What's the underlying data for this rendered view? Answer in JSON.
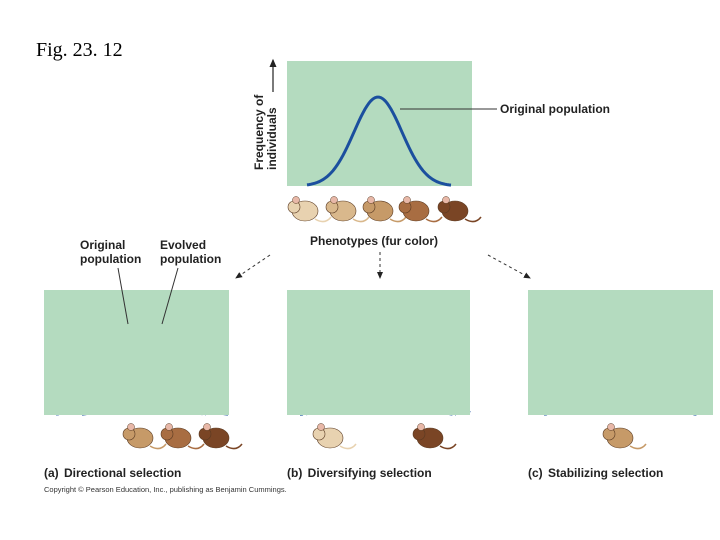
{
  "figure_label": "Fig. 23. 12",
  "top_panel": {
    "y_axis_label": [
      "Frequency of",
      "individuals"
    ],
    "curve_label": "Original population",
    "x_axis_label": "Phenotypes (fur color)"
  },
  "panel_a": {
    "original_label": [
      "Original",
      "population"
    ],
    "evolved_label": [
      "Evolved",
      "population"
    ],
    "letter": "(a)",
    "caption": "Directional selection"
  },
  "panel_b": {
    "letter": "(b)",
    "caption": "Diversifying selection"
  },
  "panel_c": {
    "letter": "(c)",
    "caption": "Stabilizing selection"
  },
  "copyright": "Copyright © Pearson Education, Inc., publishing as Benjamin Cummings."
}
